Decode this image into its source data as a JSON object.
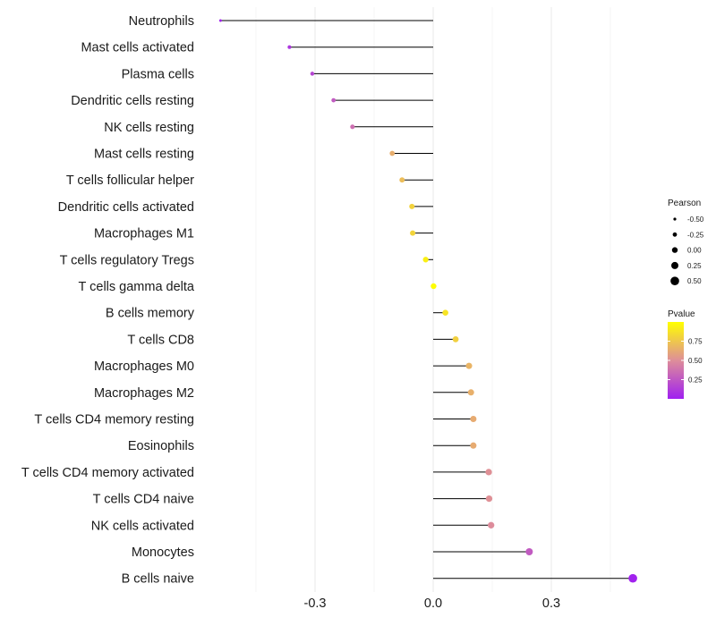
{
  "chart_data": {
    "type": "lollipop",
    "title": "",
    "xlabel": "",
    "ylabel": "",
    "xlim": [
      -0.55,
      0.53
    ],
    "x_ticks": [
      -0.3,
      0.0,
      0.3
    ],
    "x_tick_labels": [
      "-0.3",
      "0.0",
      "0.3"
    ],
    "grid": true,
    "points": [
      {
        "label": "Neutrophils",
        "pearson": -0.54,
        "pvalue": 0.01
      },
      {
        "label": "Mast cells activated",
        "pearson": -0.365,
        "pvalue": 0.1
      },
      {
        "label": "Plasma cells",
        "pearson": -0.307,
        "pvalue": 0.17
      },
      {
        "label": "Dendritic cells resting",
        "pearson": -0.253,
        "pvalue": 0.27
      },
      {
        "label": "NK cells resting",
        "pearson": -0.205,
        "pvalue": 0.36
      },
      {
        "label": "Mast cells resting",
        "pearson": -0.104,
        "pvalue": 0.64
      },
      {
        "label": "T cells follicular helper",
        "pearson": -0.079,
        "pvalue": 0.71
      },
      {
        "label": "Dendritic cells activated",
        "pearson": -0.054,
        "pvalue": 0.8
      },
      {
        "label": "Macrophages M1",
        "pearson": -0.052,
        "pvalue": 0.81
      },
      {
        "label": "T cells regulatory  Tregs ",
        "pearson": -0.019,
        "pvalue": 0.93
      },
      {
        "label": "T cells gamma delta",
        "pearson": 0.001,
        "pvalue": 0.99
      },
      {
        "label": "B cells memory",
        "pearson": 0.031,
        "pvalue": 0.88
      },
      {
        "label": "T cells CD8",
        "pearson": 0.057,
        "pvalue": 0.79
      },
      {
        "label": "Macrophages M0",
        "pearson": 0.091,
        "pvalue": 0.67
      },
      {
        "label": "Macrophages M2",
        "pearson": 0.096,
        "pvalue": 0.65
      },
      {
        "label": "T cells CD4 memory resting",
        "pearson": 0.102,
        "pvalue": 0.63
      },
      {
        "label": "Eosinophils",
        "pearson": 0.102,
        "pvalue": 0.63
      },
      {
        "label": "T cells CD4 memory activated",
        "pearson": 0.141,
        "pvalue": 0.51
      },
      {
        "label": "T cells CD4 naive",
        "pearson": 0.142,
        "pvalue": 0.51
      },
      {
        "label": "NK cells activated",
        "pearson": 0.147,
        "pvalue": 0.49
      },
      {
        "label": "Monocytes",
        "pearson": 0.244,
        "pvalue": 0.27
      },
      {
        "label": "B cells naive",
        "pearson": 0.507,
        "pvalue": 0.01
      }
    ],
    "legend_size": {
      "title": "Pearson",
      "entries": [
        {
          "label": "-0.50",
          "value": -0.5
        },
        {
          "label": "-0.25",
          "value": -0.25
        },
        {
          "label": "0.00",
          "value": 0.0
        },
        {
          "label": "0.25",
          "value": 0.25
        },
        {
          "label": "0.50",
          "value": 0.5
        }
      ]
    },
    "legend_color": {
      "title": "Pvalue",
      "ticks": [
        "0.75",
        "0.50",
        "0.25"
      ],
      "tick_values": [
        0.75,
        0.5,
        0.25
      ],
      "color_low": "#a020f0",
      "color_mid": "#de8e99",
      "color_high": "#ffff00"
    }
  }
}
